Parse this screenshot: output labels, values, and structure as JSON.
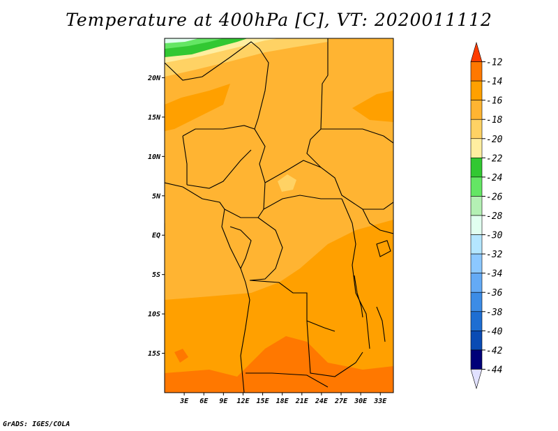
{
  "title": "Temperature at 400hPa [C], VT: 2020011112",
  "credit": "GrADS: IGES/COLA",
  "map": {
    "projection": "lat-lon",
    "lon_range": [
      0,
      35
    ],
    "lat_range": [
      -20,
      25
    ],
    "lat_ticks": [
      {
        "value": 20,
        "label": "20N"
      },
      {
        "value": 15,
        "label": "15N"
      },
      {
        "value": 10,
        "label": "10N"
      },
      {
        "value": 5,
        "label": "5N"
      },
      {
        "value": 0,
        "label": "EQ"
      },
      {
        "value": -5,
        "label": "5S"
      },
      {
        "value": -10,
        "label": "10S"
      },
      {
        "value": -15,
        "label": "15S"
      }
    ],
    "lon_ticks": [
      {
        "value": 3,
        "label": "3E"
      },
      {
        "value": 6,
        "label": "6E"
      },
      {
        "value": 9,
        "label": "9E"
      },
      {
        "value": 12,
        "label": "12E"
      },
      {
        "value": 15,
        "label": "15E"
      },
      {
        "value": 18,
        "label": "18E"
      },
      {
        "value": 21,
        "label": "21E"
      },
      {
        "value": 24,
        "label": "24E"
      },
      {
        "value": 27,
        "label": "27E"
      },
      {
        "value": 30,
        "label": "30E"
      },
      {
        "value": 33,
        "label": "33E"
      }
    ]
  },
  "colorbar": {
    "labels": [
      "-12",
      "-14",
      "-16",
      "-18",
      "-20",
      "-22",
      "-24",
      "-26",
      "-28",
      "-30",
      "-32",
      "-34",
      "-36",
      "-38",
      "-40",
      "-42",
      "-44"
    ],
    "colors": [
      "#ff3c00",
      "#ff7800",
      "#ffa000",
      "#ffb432",
      "#ffd264",
      "#ffeea0",
      "#32c832",
      "#64e664",
      "#b4f0b4",
      "#e1fff0",
      "#b4e6ff",
      "#8cc8ff",
      "#64aaf5",
      "#3c8ce6",
      "#1e6ed2",
      "#0a4bb4",
      "#000078",
      "#e1e1ff"
    ]
  }
}
